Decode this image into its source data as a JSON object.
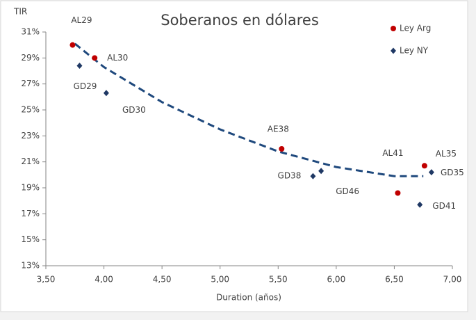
{
  "chart_data": {
    "type": "scatter",
    "title": "Soberanos en dólares",
    "y_label": "TIR",
    "x_label": "Duration (años)",
    "series": [
      {
        "name": "Ley Arg",
        "color": "#c00000",
        "marker": "circle",
        "labels": [
          "AL29",
          "AL30",
          "AE38",
          "AL41",
          "AL35"
        ],
        "x": [
          3.73,
          3.92,
          5.53,
          6.53,
          6.76
        ],
        "values": [
          30.0,
          29.0,
          22.0,
          18.6,
          20.7
        ]
      },
      {
        "name": "Ley NY",
        "color": "#1f3864",
        "marker": "diamond",
        "labels": [
          "GD29",
          "GD30",
          "GD38",
          "GD46",
          "GD35",
          "GD41"
        ],
        "x": [
          3.79,
          4.02,
          5.8,
          5.87,
          6.82,
          6.72
        ],
        "values": [
          28.4,
          26.3,
          19.9,
          20.3,
          20.2,
          17.7
        ]
      }
    ],
    "trendline": {
      "color": "#1f497d",
      "x": [
        3.75,
        4.0,
        4.5,
        5.0,
        5.5,
        6.0,
        6.5,
        6.75
      ],
      "values": [
        30.1,
        28.3,
        25.6,
        23.5,
        21.8,
        20.6,
        19.9,
        19.9
      ]
    },
    "xlim": [
      3.5,
      7.0
    ],
    "xticks": [
      {
        "value": 3.5,
        "label": "3,50"
      },
      {
        "value": 4.0,
        "label": "4,00"
      },
      {
        "value": 4.5,
        "label": "4,50"
      },
      {
        "value": 5.0,
        "label": "5,00"
      },
      {
        "value": 5.5,
        "label": "5,50"
      },
      {
        "value": 6.0,
        "label": "6,00"
      },
      {
        "value": 6.5,
        "label": "6,50"
      },
      {
        "value": 7.0,
        "label": "7,00"
      }
    ],
    "ylim": [
      13,
      31
    ],
    "yticks": [
      {
        "value": 13,
        "label": "13%"
      },
      {
        "value": 15,
        "label": "15%"
      },
      {
        "value": 17,
        "label": "17%"
      },
      {
        "value": 19,
        "label": "19%"
      },
      {
        "value": 21,
        "label": "21%"
      },
      {
        "value": 23,
        "label": "23%"
      },
      {
        "value": 25,
        "label": "25%"
      },
      {
        "value": 27,
        "label": "27%"
      },
      {
        "value": 29,
        "label": "29%"
      },
      {
        "value": 31,
        "label": "31%"
      }
    ],
    "legend": "top-right"
  }
}
